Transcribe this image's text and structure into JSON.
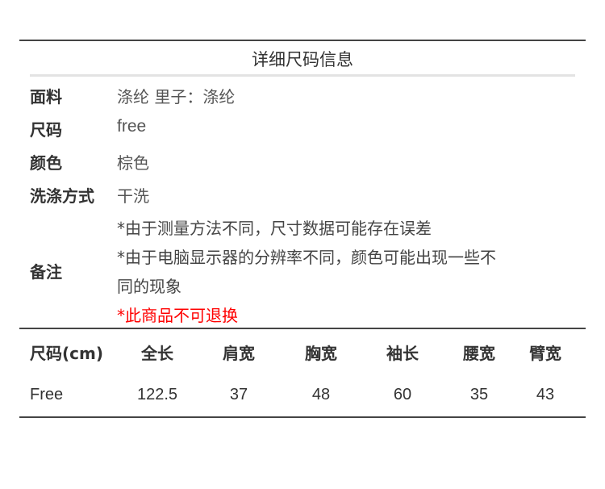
{
  "title": "详细尺码信息",
  "details": [
    {
      "label": "面料",
      "value": "涤纶 里子：涤纶"
    },
    {
      "label": "尺码",
      "value": "free"
    },
    {
      "label": "颜色",
      "value": "棕色"
    },
    {
      "label": "洗涤方式",
      "value": "干洗"
    }
  ],
  "remarks": {
    "label": "备注",
    "lines": [
      "*由于测量方法不同，尺寸数据可能存在误差",
      "*由于电脑显示器的分辨率不同，颜色可能出现一些不",
      "同的现象"
    ],
    "warning": "*此商品不可退换",
    "warning_color": "#ff0000"
  },
  "size_table": {
    "headers": [
      "尺码(cm)",
      "全长",
      "肩宽",
      "胸宽",
      "袖长",
      "腰宽",
      "臂宽"
    ],
    "rows": [
      [
        "Free",
        "122.5",
        "37",
        "48",
        "60",
        "35",
        "43"
      ]
    ]
  }
}
